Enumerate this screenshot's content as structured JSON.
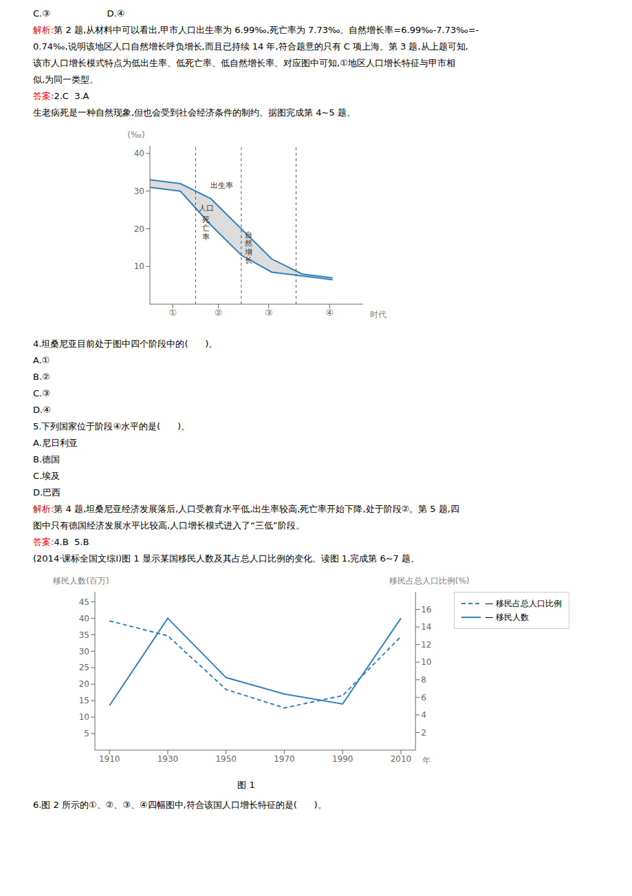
{
  "chart_data": [
    {
      "type": "area",
      "x": [
        0,
        1,
        2,
        3,
        4,
        5,
        6
      ],
      "series": [
        {
          "values": [
            33,
            32,
            28,
            20,
            12,
            8,
            7
          ]
        },
        {
          "values": [
            31,
            30,
            21,
            13,
            8.5,
            7.5,
            6.5
          ]
        }
      ],
      "color": "lightgray",
      "xlim": [
        0,
        7
      ],
      "xticks": [
        {
          "value": 0.75,
          "label": "①"
        },
        {
          "value": 2.25,
          "label": "②"
        },
        {
          "value": 3.9,
          "label": "③"
        },
        {
          "value": 5.9,
          "label": "④"
        }
      ],
      "ylim": [
        0,
        42
      ],
      "yticks": [
        10,
        20,
        30,
        40
      ],
      "ylabel": "(‰)",
      "xlabel": "时代",
      "vlines": [
        1.5,
        3.0,
        4.8
      ],
      "annotations": [
        {
          "text": "出生率",
          "x": 2.35,
          "y": 31.5
        },
        {
          "text": "人口",
          "x": 1.85,
          "y": 25.5
        },
        {
          "text": "死",
          "x": 1.85,
          "y": 22.5
        },
        {
          "text": "亡",
          "x": 1.85,
          "y": 20.2
        },
        {
          "text": "率",
          "x": 1.85,
          "y": 17.9
        },
        {
          "text": "自",
          "x": 3.25,
          "y": 18.5
        },
        {
          "text": "然",
          "x": 3.25,
          "y": 16.2
        },
        {
          "text": "增",
          "x": 3.25,
          "y": 13.9
        },
        {
          "text": "长",
          "x": 3.25,
          "y": 11.6
        }
      ],
      "grid": false
    },
    {
      "type": "line",
      "x": [
        1910,
        1930,
        1950,
        1970,
        1990,
        2010
      ],
      "xlim": [
        1905,
        2015
      ],
      "xticks": [
        1910,
        1930,
        1950,
        1970,
        1990,
        2010
      ],
      "xlabel": "年",
      "ylabel": "移民人数(百万)",
      "ylim": [
        0,
        48
      ],
      "yticks": [
        5,
        10,
        15,
        20,
        25,
        30,
        35,
        40,
        45
      ],
      "y2label": "移民占总人口比例(%)",
      "y2lim": [
        0,
        18
      ],
      "y2ticks": [
        2,
        4,
        6,
        8,
        10,
        12,
        14,
        16
      ],
      "series": [
        {
          "name": "— 移民占总人口比例",
          "values": [
            14.7,
            13,
            6.9,
            4.8,
            6.2,
            12.9
          ],
          "axis": "y2",
          "line_style": "dashed"
        },
        {
          "name": "— 移民人数",
          "values": [
            13.5,
            40,
            22,
            17,
            14,
            40
          ],
          "line_style": "solid"
        }
      ],
      "legend": "upper right",
      "caption": "图 1",
      "grid": false
    }
  ],
  "text_blocks": [
    [
      [
        "C.③                    D.④"
      ],
      [
        {
          "text": "解析:",
          "color": "red"
        },
        "第 2 题,从材料中可以看出,甲市人口出生率为 6.99‰,死亡率为 7.73‰。自然增长率=6.99‰-7.73‰=-"
      ],
      [
        "0.74‰,说明该地区人口自然增长呼负增长,而且已持续 14 年,符合题意的只有 C 项上海。第 3 题,从上题可知,"
      ],
      [
        "该市人口增长模式特点为低出生率、低死亡率、低自然增长率。对应图中可知,①地区人口增长特征与甲市相"
      ],
      [
        "似,为同一类型。"
      ],
      [
        {
          "text": "答案:",
          "color": "red"
        },
        "2.C  3.A"
      ],
      [
        "生老病死是一种自然现象,但也会受到社会经济条件的制约。据图完成第 4~5 题。"
      ]
    ],
    [
      [
        "4.坦桑尼亚目前处于图中四个阶段中的(      )。"
      ],
      [
        "A.①"
      ],
      [
        "B.②"
      ],
      [
        "C.③"
      ],
      [
        "D.④"
      ],
      [
        "5.下列国家位于阶段④水平的是(      )。"
      ],
      [
        "A.尼日利亚"
      ],
      [
        "B.德国"
      ],
      [
        "C.埃及"
      ],
      [
        "D.巴西"
      ],
      [
        {
          "text": "解析:",
          "color": "red"
        },
        "第 4 题,坦桑尼亚经济发展落后,人口受教育水平低,出生率较高,死亡率开始下降,处于阶段②。第 5 题,四"
      ],
      [
        "图中只有德国经济发展水平比较高,人口增长模式进入了“三低”阶段。"
      ],
      [
        {
          "text": "答案:",
          "color": "red"
        },
        "4.B  5.B"
      ],
      [
        "(2014·课标全国文综Ⅰ)图 1 显示某国移民人数及其占总人口比例的变化。读图 1,完成第 6~7 题。"
      ]
    ],
    [
      [
        "6.图 2 所示的①、②、③、④四幅图中,符合该国人口增长特征的是(      )。"
      ]
    ]
  ]
}
